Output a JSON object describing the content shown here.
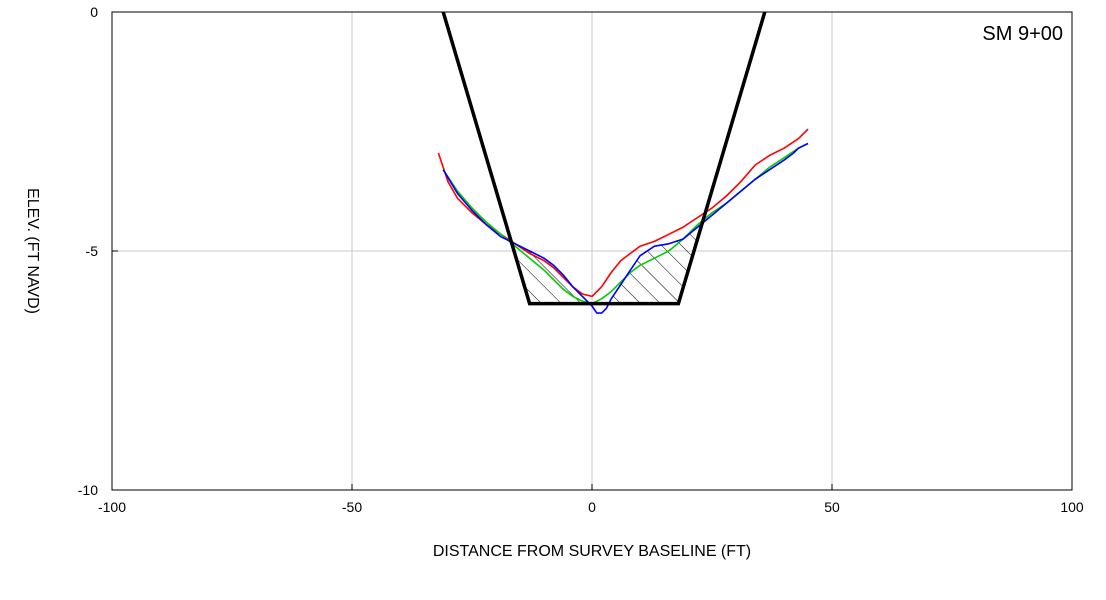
{
  "chart_data": {
    "type": "line",
    "section_label": "SM 9+00",
    "xlabel": "DISTANCE FROM SURVEY BASELINE (FT)",
    "ylabel": "ELEV. (FT NAVD)",
    "xlim": [
      -100,
      100
    ],
    "ylim": [
      -10,
      0
    ],
    "x_ticks": [
      -100,
      -50,
      0,
      50,
      100
    ],
    "y_ticks": [
      0,
      -5,
      -10
    ],
    "x_tick_labels": [
      "-100",
      "-50",
      "0",
      "50",
      "100"
    ],
    "y_tick_labels": [
      "0",
      "-5",
      "-10"
    ],
    "grid": true,
    "legend": "none",
    "template": {
      "color": "#000000",
      "points": [
        [
          -31,
          0
        ],
        [
          -13,
          -6.1
        ],
        [
          18,
          -6.1
        ],
        [
          36,
          0
        ]
      ]
    },
    "hatched_area": {
      "color": "#000000",
      "description_points_top_profile": "blue",
      "bottom_elevation": -6.1
    },
    "series": [
      {
        "color": "#ff0000",
        "x": [
          -32,
          -30,
          -28,
          -25,
          -22,
          -19,
          -16,
          -13,
          -10,
          -8,
          -6,
          -4,
          -2,
          0,
          2,
          4,
          6,
          8,
          10,
          13,
          16,
          19,
          22,
          25,
          28,
          31,
          34,
          37,
          40,
          43,
          45
        ],
        "y": [
          -2.95,
          -3.55,
          -3.9,
          -4.2,
          -4.45,
          -4.65,
          -4.85,
          -5.05,
          -5.2,
          -5.35,
          -5.55,
          -5.75,
          -5.9,
          -5.95,
          -5.75,
          -5.45,
          -5.2,
          -5.05,
          -4.9,
          -4.8,
          -4.65,
          -4.5,
          -4.3,
          -4.1,
          -3.85,
          -3.55,
          -3.2,
          -3.0,
          -2.85,
          -2.65,
          -2.45
        ]
      },
      {
        "color": "#00cc00",
        "x": [
          -31,
          -28,
          -25,
          -22,
          -19,
          -16,
          -13,
          -10,
          -8,
          -6,
          -4,
          -2,
          0,
          2,
          4,
          6,
          8,
          10,
          13,
          16,
          19,
          22,
          25,
          28,
          31,
          34,
          37,
          40,
          43,
          45
        ],
        "y": [
          -3.3,
          -3.75,
          -4.1,
          -4.4,
          -4.65,
          -4.9,
          -5.15,
          -5.4,
          -5.6,
          -5.8,
          -5.95,
          -6.05,
          -6.1,
          -6.0,
          -5.85,
          -5.65,
          -5.45,
          -5.3,
          -5.15,
          -5.0,
          -4.75,
          -4.45,
          -4.2,
          -4.0,
          -3.75,
          -3.5,
          -3.25,
          -3.05,
          -2.85,
          -2.75
        ]
      },
      {
        "color": "#0000ff",
        "x": [
          -31,
          -28,
          -25,
          -22,
          -19,
          -16,
          -13,
          -10,
          -8,
          -6,
          -4,
          -2,
          0,
          1,
          2,
          3,
          4,
          6,
          8,
          10,
          13,
          16,
          19,
          22,
          25,
          28,
          31,
          34,
          37,
          40,
          42,
          43,
          45
        ],
        "y": [
          -3.3,
          -3.8,
          -4.15,
          -4.45,
          -4.7,
          -4.85,
          -5.0,
          -5.15,
          -5.3,
          -5.5,
          -5.75,
          -5.95,
          -6.15,
          -6.3,
          -6.3,
          -6.2,
          -6.0,
          -5.7,
          -5.4,
          -5.1,
          -4.9,
          -4.85,
          -4.75,
          -4.5,
          -4.25,
          -4.0,
          -3.75,
          -3.5,
          -3.3,
          -3.1,
          -2.95,
          -2.85,
          -2.75
        ]
      }
    ]
  }
}
